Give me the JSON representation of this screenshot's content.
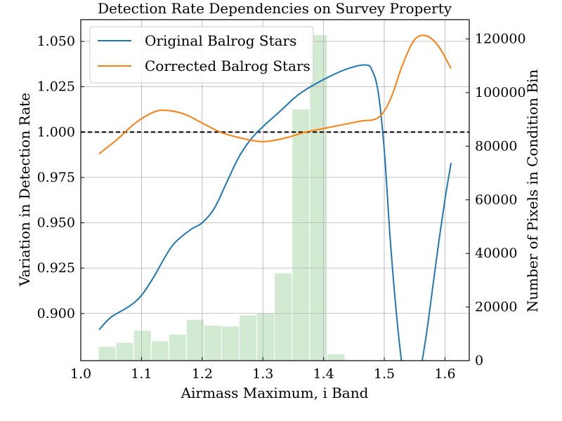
{
  "chart_data": {
    "type": "line",
    "title": "Detection Rate Dependencies on Survey Property",
    "xlabel": "Airmass Maximum, i Band",
    "ylabel": "Variation in Detection Rate",
    "y2label": "Number of Pixels in Condition Bin",
    "xlim": [
      1.0,
      1.64
    ],
    "ylim": [
      0.874,
      1.062
    ],
    "y2lim": [
      0,
      127200
    ],
    "xticks": [
      "1.0",
      "1.1",
      "1.2",
      "1.3",
      "1.4",
      "1.5",
      "1.6"
    ],
    "yticks": [
      "0.900",
      "0.925",
      "0.950",
      "0.975",
      "1.000",
      "1.025",
      "1.050"
    ],
    "y2ticks": [
      "0",
      "20000",
      "40000",
      "60000",
      "80000",
      "100000",
      "120000"
    ],
    "grid": true,
    "legend_position": "top-left",
    "reference_line": 1.0,
    "series": [
      {
        "name": "Original Balrog Stars",
        "color": "#1f77b4",
        "x": [
          1.03,
          1.05,
          1.08,
          1.1,
          1.12,
          1.15,
          1.18,
          1.2,
          1.22,
          1.24,
          1.26,
          1.28,
          1.3,
          1.33,
          1.36,
          1.4,
          1.44,
          1.47,
          1.48,
          1.49,
          1.5,
          1.51,
          1.52,
          1.53,
          1.54,
          1.55,
          1.56,
          1.57,
          1.58,
          1.59,
          1.6,
          1.61
        ],
        "y": [
          0.891,
          0.898,
          0.904,
          0.91,
          0.92,
          0.937,
          0.946,
          0.95,
          0.958,
          0.972,
          0.986,
          0.996,
          1.003,
          1.012,
          1.021,
          1.029,
          1.035,
          1.037,
          1.034,
          1.022,
          0.99,
          0.94,
          0.9,
          0.87,
          0.86,
          0.86,
          0.87,
          0.89,
          0.915,
          0.94,
          0.963,
          0.983
        ]
      },
      {
        "name": "Corrected Balrog Stars",
        "color": "#ff7f0e",
        "x": [
          1.03,
          1.06,
          1.09,
          1.12,
          1.14,
          1.17,
          1.2,
          1.23,
          1.26,
          1.29,
          1.31,
          1.34,
          1.37,
          1.4,
          1.43,
          1.46,
          1.49,
          1.51,
          1.53,
          1.55,
          1.57,
          1.59,
          1.61
        ],
        "y": [
          0.988,
          0.996,
          1.005,
          1.011,
          1.012,
          1.01,
          1.005,
          1.0,
          0.997,
          0.995,
          0.995,
          0.997,
          1.0,
          1.002,
          1.004,
          1.006,
          1.008,
          1.018,
          1.037,
          1.051,
          1.053,
          1.047,
          1.035
        ]
      }
    ],
    "histogram": {
      "name": "Number of Pixels in Condition Bin",
      "color": "#2ca02c",
      "bin_edges": [
        1.029,
        1.058,
        1.087,
        1.116,
        1.145,
        1.174,
        1.203,
        1.232,
        1.261,
        1.29,
        1.319,
        1.348,
        1.377,
        1.406,
        1.435
      ],
      "counts": [
        5300,
        6800,
        11300,
        7400,
        9800,
        15400,
        13200,
        12900,
        17000,
        17700,
        32700,
        93900,
        121600,
        2500
      ]
    }
  }
}
